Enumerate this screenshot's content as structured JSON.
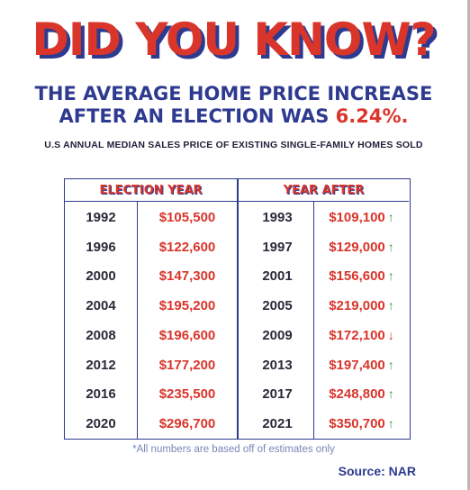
{
  "headline": "DID YOU KNOW?",
  "subhead": {
    "line1": "THE AVERAGE HOME PRICE INCREASE",
    "line2_prefix": "AFTER AN ELECTION WAS ",
    "line2_value": "6.24%."
  },
  "caption": "U.S ANNUAL MEDIAN SALES PRICE OF EXISTING SINGLE-FAMILY HOMES SOLD",
  "table": {
    "headers": [
      "ELECTION YEAR",
      "YEAR AFTER"
    ],
    "rows": [
      {
        "election_year": "1992",
        "election_price": "$105,500",
        "year_after": "1993",
        "after_price": "$109,100",
        "trend": "up"
      },
      {
        "election_year": "1996",
        "election_price": "$122,600",
        "year_after": "1997",
        "after_price": "$129,000",
        "trend": "up"
      },
      {
        "election_year": "2000",
        "election_price": "$147,300",
        "year_after": "2001",
        "after_price": "$156,600",
        "trend": "up"
      },
      {
        "election_year": "2004",
        "election_price": "$195,200",
        "year_after": "2005",
        "after_price": "$219,000",
        "trend": "up"
      },
      {
        "election_year": "2008",
        "election_price": "$196,600",
        "year_after": "2009",
        "after_price": "$172,100",
        "trend": "down"
      },
      {
        "election_year": "2012",
        "election_price": "$177,200",
        "year_after": "2013",
        "after_price": "$197,400",
        "trend": "up"
      },
      {
        "election_year": "2016",
        "election_price": "$235,500",
        "year_after": "2017",
        "after_price": "$248,800",
        "trend": "up"
      },
      {
        "election_year": "2020",
        "election_price": "$296,700",
        "year_after": "2021",
        "after_price": "$350,700",
        "trend": "up"
      }
    ]
  },
  "footnote": "*All numbers are based off of estimates only",
  "source": "Source: NAR",
  "colors": {
    "red": "#d9352b",
    "navy": "#2e3a8f",
    "green": "#3a9a4a"
  },
  "icons": {
    "up": "arrow-up-icon",
    "down": "arrow-down-icon"
  }
}
